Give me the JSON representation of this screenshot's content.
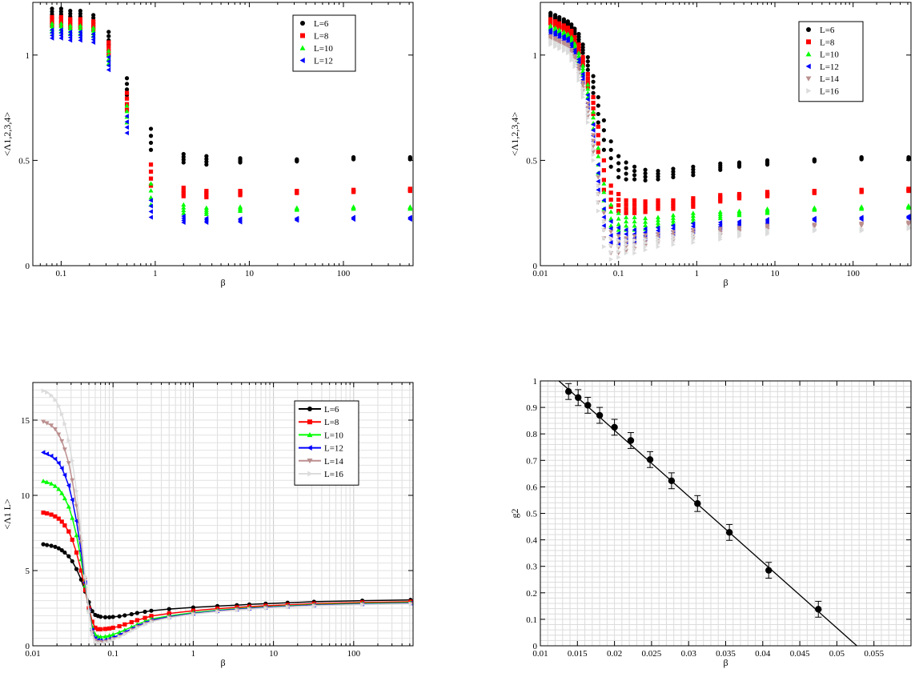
{
  "chart_data": [
    {
      "type": "scatter",
      "id": "tl",
      "xscale": "log",
      "xlim": [
        0.05,
        550
      ],
      "ylim": [
        0,
        1.25
      ],
      "xticks": [
        0.1,
        1,
        10,
        100
      ],
      "xtick_labels": [
        "0.1",
        "1",
        "10",
        "100"
      ],
      "yticks": [
        0,
        0.5,
        1
      ],
      "ytick_labels": [
        "0",
        "0.5",
        "1"
      ],
      "xlabel": "β",
      "ylabel": "<Λ1,2,3,4>",
      "grid": false,
      "legend_position": "top-right",
      "betas": [
        0.08,
        0.1,
        0.125,
        0.16,
        0.22,
        0.32,
        0.5,
        0.9,
        2,
        3.5,
        8,
        32,
        128,
        512
      ],
      "series": [
        {
          "name": "L=6",
          "color": "#000000",
          "marker": "circle",
          "values": [
            1.2,
            1.2,
            1.19,
            1.19,
            1.17,
            1.08,
            0.85,
            0.6,
            0.51,
            0.5,
            0.5,
            0.5,
            0.51,
            0.51
          ],
          "spread": [
            0.02,
            0.02,
            0.02,
            0.02,
            0.02,
            0.03,
            0.04,
            0.05,
            0.02,
            0.02,
            0.01,
            0.005,
            0.005,
            0.005
          ]
        },
        {
          "name": "L=8",
          "color": "#ff0000",
          "marker": "square",
          "values": [
            1.16,
            1.16,
            1.15,
            1.15,
            1.14,
            1.03,
            0.78,
            0.43,
            0.35,
            0.34,
            0.345,
            0.35,
            0.355,
            0.36
          ],
          "spread": [
            0.02,
            0.02,
            0.02,
            0.02,
            0.02,
            0.03,
            0.04,
            0.05,
            0.02,
            0.015,
            0.01,
            0.005,
            0.005,
            0.005
          ]
        },
        {
          "name": "L=10",
          "color": "#00ff00",
          "marker": "triangle-up",
          "values": [
            1.13,
            1.13,
            1.12,
            1.12,
            1.11,
            0.99,
            0.72,
            0.34,
            0.27,
            0.26,
            0.27,
            0.27,
            0.275,
            0.275
          ],
          "spread": [
            0.02,
            0.02,
            0.02,
            0.02,
            0.02,
            0.03,
            0.04,
            0.05,
            0.02,
            0.015,
            0.01,
            0.005,
            0.005,
            0.005
          ]
        },
        {
          "name": "L=12",
          "color": "#0000ff",
          "marker": "triangle-left",
          "values": [
            1.1,
            1.1,
            1.09,
            1.09,
            1.08,
            0.96,
            0.67,
            0.27,
            0.22,
            0.215,
            0.215,
            0.22,
            0.225,
            0.225
          ],
          "spread": [
            0.02,
            0.02,
            0.02,
            0.02,
            0.02,
            0.03,
            0.04,
            0.04,
            0.015,
            0.01,
            0.008,
            0.005,
            0.005,
            0.005
          ]
        }
      ]
    },
    {
      "type": "scatter",
      "id": "tr",
      "xscale": "log",
      "xlim": [
        0.01,
        550
      ],
      "ylim": [
        0,
        1.25
      ],
      "xticks": [
        0.01,
        0.1,
        1,
        10,
        100
      ],
      "xtick_labels": [
        "0.01",
        "0.1",
        "1",
        "10",
        "100"
      ],
      "yticks": [
        0,
        0.5,
        1
      ],
      "ytick_labels": [
        "0",
        "0.5",
        "1"
      ],
      "xlabel": "β",
      "ylabel": "<Λ1,2,3,4>",
      "grid": false,
      "legend_position": "top-right",
      "betas": [
        0.0135,
        0.0155,
        0.0175,
        0.02,
        0.0225,
        0.025,
        0.0275,
        0.031,
        0.035,
        0.0405,
        0.0475,
        0.055,
        0.065,
        0.08,
        0.1,
        0.125,
        0.16,
        0.22,
        0.32,
        0.5,
        0.9,
        2,
        3.5,
        8,
        32,
        128,
        512
      ],
      "series": [
        {
          "name": "L=6",
          "color": "#000000",
          "marker": "circle",
          "values": [
            1.19,
            1.18,
            1.17,
            1.16,
            1.15,
            1.13,
            1.11,
            1.08,
            1.03,
            0.96,
            0.86,
            0.74,
            0.62,
            0.53,
            0.47,
            0.45,
            0.44,
            0.43,
            0.43,
            0.44,
            0.45,
            0.47,
            0.48,
            0.49,
            0.5,
            0.51,
            0.51
          ],
          "spread": [
            0.01,
            0.01,
            0.01,
            0.01,
            0.01,
            0.015,
            0.015,
            0.02,
            0.02,
            0.03,
            0.04,
            0.06,
            0.07,
            0.06,
            0.05,
            0.04,
            0.03,
            0.025,
            0.02,
            0.02,
            0.02,
            0.015,
            0.01,
            0.01,
            0.005,
            0.005,
            0.005
          ]
        },
        {
          "name": "L=8",
          "color": "#ff0000",
          "marker": "square",
          "values": [
            1.16,
            1.15,
            1.14,
            1.13,
            1.12,
            1.1,
            1.07,
            1.03,
            0.97,
            0.88,
            0.76,
            0.6,
            0.43,
            0.33,
            0.3,
            0.28,
            0.28,
            0.28,
            0.29,
            0.29,
            0.3,
            0.32,
            0.33,
            0.34,
            0.35,
            0.355,
            0.36
          ],
          "spread": [
            0.01,
            0.01,
            0.01,
            0.01,
            0.01,
            0.015,
            0.015,
            0.02,
            0.02,
            0.03,
            0.04,
            0.06,
            0.07,
            0.05,
            0.04,
            0.03,
            0.03,
            0.025,
            0.02,
            0.02,
            0.02,
            0.015,
            0.01,
            0.01,
            0.005,
            0.005,
            0.005
          ]
        },
        {
          "name": "L=10",
          "color": "#00ff00",
          "marker": "triangle-up",
          "values": [
            1.13,
            1.12,
            1.11,
            1.1,
            1.09,
            1.07,
            1.04,
            0.99,
            0.93,
            0.83,
            0.69,
            0.5,
            0.33,
            0.24,
            0.21,
            0.2,
            0.2,
            0.2,
            0.21,
            0.22,
            0.23,
            0.24,
            0.25,
            0.26,
            0.27,
            0.275,
            0.28
          ],
          "spread": [
            0.01,
            0.01,
            0.01,
            0.01,
            0.01,
            0.015,
            0.015,
            0.02,
            0.02,
            0.03,
            0.04,
            0.06,
            0.06,
            0.05,
            0.04,
            0.03,
            0.03,
            0.025,
            0.02,
            0.02,
            0.02,
            0.015,
            0.01,
            0.01,
            0.005,
            0.005,
            0.005
          ]
        },
        {
          "name": "L=12",
          "color": "#0000ff",
          "marker": "triangle-left",
          "values": [
            1.11,
            1.1,
            1.09,
            1.08,
            1.07,
            1.04,
            1.01,
            0.96,
            0.89,
            0.78,
            0.63,
            0.42,
            0.25,
            0.16,
            0.14,
            0.14,
            0.14,
            0.15,
            0.16,
            0.17,
            0.18,
            0.19,
            0.2,
            0.21,
            0.22,
            0.225,
            0.23
          ],
          "spread": [
            0.01,
            0.01,
            0.01,
            0.01,
            0.01,
            0.015,
            0.015,
            0.02,
            0.02,
            0.03,
            0.04,
            0.06,
            0.06,
            0.05,
            0.04,
            0.03,
            0.03,
            0.025,
            0.02,
            0.02,
            0.02,
            0.015,
            0.01,
            0.01,
            0.005,
            0.005,
            0.005
          ]
        },
        {
          "name": "L=14",
          "color": "#bc8f8f",
          "marker": "triangle-down",
          "values": [
            1.08,
            1.07,
            1.06,
            1.05,
            1.04,
            1.01,
            0.98,
            0.93,
            0.85,
            0.74,
            0.58,
            0.36,
            0.19,
            0.11,
            0.1,
            0.1,
            0.11,
            0.12,
            0.13,
            0.14,
            0.15,
            0.16,
            0.17,
            0.18,
            0.19,
            0.195,
            0.2
          ],
          "spread": [
            0.01,
            0.01,
            0.01,
            0.01,
            0.01,
            0.015,
            0.015,
            0.02,
            0.02,
            0.03,
            0.04,
            0.06,
            0.06,
            0.05,
            0.04,
            0.03,
            0.03,
            0.025,
            0.02,
            0.02,
            0.02,
            0.015,
            0.01,
            0.01,
            0.005,
            0.005,
            0.005
          ]
        },
        {
          "name": "L=16",
          "color": "#dcdcdc",
          "marker": "triangle-right",
          "values": [
            1.06,
            1.05,
            1.04,
            1.03,
            1.02,
            0.99,
            0.96,
            0.9,
            0.82,
            0.71,
            0.54,
            0.32,
            0.15,
            0.08,
            0.08,
            0.09,
            0.09,
            0.1,
            0.11,
            0.12,
            0.13,
            0.14,
            0.15,
            0.16,
            0.17,
            0.17,
            0.18
          ],
          "spread": [
            0.01,
            0.01,
            0.01,
            0.01,
            0.01,
            0.015,
            0.015,
            0.02,
            0.02,
            0.03,
            0.04,
            0.06,
            0.06,
            0.05,
            0.04,
            0.03,
            0.03,
            0.025,
            0.02,
            0.02,
            0.02,
            0.015,
            0.01,
            0.01,
            0.005,
            0.005,
            0.005
          ]
        }
      ]
    },
    {
      "type": "line",
      "id": "bl",
      "xscale": "log",
      "xlim": [
        0.01,
        550
      ],
      "ylim": [
        0,
        17.5
      ],
      "xticks": [
        0.01,
        0.1,
        1,
        10,
        100
      ],
      "xtick_labels": [
        "0.01",
        "0.1",
        "1",
        "10",
        "100"
      ],
      "yticks": [
        0,
        5,
        10,
        15
      ],
      "ytick_labels": [
        "0",
        "5",
        "10",
        "15"
      ],
      "xlabel": "β",
      "ylabel": "<Λ1 L>",
      "grid": true,
      "legend_position": "top-right",
      "betas": [
        0.0135,
        0.015,
        0.017,
        0.019,
        0.021,
        0.023,
        0.025,
        0.028,
        0.031,
        0.035,
        0.04,
        0.045,
        0.05,
        0.055,
        0.06,
        0.065,
        0.07,
        0.08,
        0.09,
        0.1,
        0.12,
        0.14,
        0.17,
        0.2,
        0.25,
        0.3,
        0.5,
        1,
        2,
        3.5,
        5,
        8,
        15,
        32,
        128,
        512
      ],
      "series": [
        {
          "name": "L=6",
          "color": "#000000",
          "marker": "circle",
          "values": [
            6.75,
            6.7,
            6.65,
            6.58,
            6.48,
            6.35,
            6.2,
            5.95,
            5.62,
            5.1,
            4.4,
            3.6,
            2.9,
            2.3,
            2.05,
            1.98,
            1.93,
            1.9,
            1.9,
            1.92,
            1.96,
            2.02,
            2.1,
            2.18,
            2.26,
            2.33,
            2.44,
            2.55,
            2.64,
            2.7,
            2.75,
            2.8,
            2.86,
            2.93,
            3.0,
            3.05
          ]
        },
        {
          "name": "L=8",
          "color": "#ff0000",
          "marker": "square",
          "values": [
            8.85,
            8.8,
            8.72,
            8.6,
            8.45,
            8.25,
            8.0,
            7.6,
            7.05,
            6.2,
            5.0,
            3.7,
            2.5,
            1.6,
            1.2,
            1.1,
            1.1,
            1.12,
            1.15,
            1.2,
            1.3,
            1.42,
            1.57,
            1.7,
            1.85,
            1.98,
            2.15,
            2.33,
            2.47,
            2.55,
            2.6,
            2.66,
            2.72,
            2.8,
            2.88,
            2.93
          ]
        },
        {
          "name": "L=10",
          "color": "#00ff00",
          "marker": "triangle-up",
          "values": [
            10.95,
            10.88,
            10.78,
            10.62,
            10.42,
            10.15,
            9.8,
            9.25,
            8.5,
            7.35,
            5.75,
            4.0,
            2.4,
            1.25,
            0.75,
            0.62,
            0.6,
            0.62,
            0.68,
            0.75,
            0.9,
            1.05,
            1.25,
            1.42,
            1.62,
            1.78,
            1.98,
            2.2,
            2.36,
            2.46,
            2.52,
            2.58,
            2.65,
            2.73,
            2.82,
            2.87
          ]
        },
        {
          "name": "L=12",
          "color": "#0000ff",
          "marker": "triangle-left",
          "values": [
            12.85,
            12.75,
            12.62,
            12.42,
            12.15,
            11.8,
            11.35,
            10.65,
            9.7,
            8.3,
            6.3,
            4.2,
            2.35,
            1.05,
            0.5,
            0.38,
            0.35,
            0.38,
            0.45,
            0.55,
            0.72,
            0.9,
            1.12,
            1.32,
            1.52,
            1.7,
            1.92,
            2.15,
            2.32,
            2.42,
            2.48,
            2.55,
            2.62,
            2.7,
            2.78,
            2.83
          ]
        },
        {
          "name": "L=14",
          "color": "#bc8f8f",
          "marker": "triangle-down",
          "values": [
            14.9,
            14.8,
            14.65,
            14.4,
            14.05,
            13.6,
            13.05,
            12.15,
            11.0,
            9.3,
            6.9,
            4.4,
            2.3,
            0.9,
            0.35,
            0.25,
            0.25,
            0.28,
            0.35,
            0.45,
            0.62,
            0.82,
            1.05,
            1.25,
            1.46,
            1.64,
            1.88,
            2.12,
            2.29,
            2.39,
            2.45,
            2.52,
            2.59,
            2.67,
            2.75,
            2.8
          ]
        },
        {
          "name": "L=16",
          "color": "#dcdcdc",
          "marker": "triangle-right",
          "values": [
            16.95,
            16.85,
            16.65,
            16.35,
            15.95,
            15.4,
            14.75,
            13.65,
            12.3,
            10.3,
            7.5,
            4.6,
            2.25,
            0.75,
            0.25,
            0.18,
            0.18,
            0.22,
            0.3,
            0.4,
            0.58,
            0.78,
            1.0,
            1.2,
            1.42,
            1.6,
            1.85,
            2.1,
            2.27,
            2.37,
            2.43,
            2.5,
            2.57,
            2.65,
            2.73,
            2.78
          ]
        }
      ]
    },
    {
      "type": "scatter",
      "id": "br",
      "xscale": "linear",
      "xlim": [
        0.01,
        0.06
      ],
      "ylim": [
        0,
        1
      ],
      "xticks": [
        0.01,
        0.015,
        0.02,
        0.025,
        0.03,
        0.035,
        0.04,
        0.045,
        0.05,
        0.055
      ],
      "xtick_labels": [
        "0.01",
        "0.015",
        "0.02",
        "0.025",
        "0.03",
        "0.035",
        "0.04",
        "0.045",
        "0.05",
        "0.055"
      ],
      "yticks": [
        0,
        0.1,
        0.2,
        0.3,
        0.4,
        0.5,
        0.6,
        0.7,
        0.8,
        0.9,
        1
      ],
      "ytick_labels": [
        "0",
        "0.1",
        "0.2",
        "0.3",
        "0.4",
        "0.5",
        "0.6",
        "0.7",
        "0.8",
        "0.9",
        "1"
      ],
      "xlabel": "β",
      "ylabel": "g2",
      "grid": true,
      "minor_grid": {
        "x_step": 0.001,
        "y_step": 0.02
      },
      "points": {
        "x": [
          0.0138,
          0.0151,
          0.0164,
          0.018,
          0.02,
          0.0222,
          0.0248,
          0.0277,
          0.0312,
          0.0355,
          0.0408,
          0.0475
        ],
        "y": [
          0.96,
          0.937,
          0.908,
          0.87,
          0.825,
          0.775,
          0.703,
          0.623,
          0.537,
          0.428,
          0.285,
          0.138
        ],
        "err": [
          0.03,
          0.03,
          0.03,
          0.03,
          0.03,
          0.03,
          0.03,
          0.03,
          0.03,
          0.03,
          0.03,
          0.03
        ]
      },
      "fit_line": {
        "x": [
          0.0125,
          0.0527
        ],
        "y": [
          1.0,
          0.0
        ]
      }
    }
  ]
}
